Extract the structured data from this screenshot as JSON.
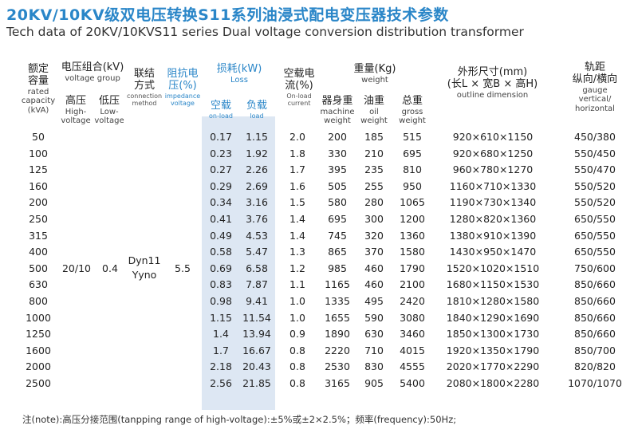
{
  "title_cn": "20KV/10KV级双电压转换S11系列油浸式配电变压器技术参数",
  "title_en": "Tech data of 20KV/10KVS11 series Dual voltage conversion distribution transformer",
  "headers": {
    "capacity": {
      "cn": "额定\n容量",
      "en": "rated\ncapacity\n(kVA)"
    },
    "voltage_group": {
      "cn": "电压组合(kV)",
      "en": "voltage group"
    },
    "high_voltage": {
      "cn": "高压",
      "en": "High-\nvoltage"
    },
    "low_voltage": {
      "cn": "低压",
      "en": "Low-\nvoltage"
    },
    "connection": {
      "cn": "联结\n方式",
      "en": "connection\nmethod"
    },
    "impedance": {
      "cn": "阻抗电\n压(%)",
      "en": "impedance\nvoltage"
    },
    "loss": {
      "cn": "损耗(kW)",
      "en": "Loss"
    },
    "on_load": {
      "cn": "空载",
      "en": "on-load"
    },
    "load": {
      "cn": "负载",
      "en": "load"
    },
    "noload_current": {
      "cn": "空载电\n流(%)",
      "en": "On-load\ncurrent"
    },
    "weight": {
      "cn": "重量(Kg)",
      "en": "weight"
    },
    "machine_weight": {
      "cn": "器身重",
      "en": "machine\nweight"
    },
    "oil_weight": {
      "cn": "油重",
      "en": "oil\nweight"
    },
    "gross_weight": {
      "cn": "总重",
      "en": "gross\nweight"
    },
    "dimension": {
      "cn": "外形尺寸(mm)\n(长L × 宽B × 高H)",
      "en": "outline dimension"
    },
    "gauge": {
      "cn": "轨距\n纵向/横向",
      "en": "gauge\nvertical/\nhorizontal"
    }
  },
  "merged": {
    "voltage": "20/10",
    "low": "0.4",
    "connection": "Dyn11\nYyno",
    "impedance": "5.5"
  },
  "rows": [
    {
      "capacity": "50",
      "noload": "0.17",
      "load": "1.15",
      "current": "2.0",
      "machine": "200",
      "oil": "185",
      "gross": "515",
      "dim": "920×610×1150",
      "gauge": "450/380"
    },
    {
      "capacity": "100",
      "noload": "0.23",
      "load": "1.92",
      "current": "1.8",
      "machine": "330",
      "oil": "210",
      "gross": "695",
      "dim": "920×680×1250",
      "gauge": "550/450"
    },
    {
      "capacity": "125",
      "noload": "0.27",
      "load": "2.26",
      "current": "1.7",
      "machine": "395",
      "oil": "235",
      "gross": "810",
      "dim": "960×780×1270",
      "gauge": "550/470"
    },
    {
      "capacity": "160",
      "noload": "0.29",
      "load": "2.69",
      "current": "1.6",
      "machine": "505",
      "oil": "255",
      "gross": "950",
      "dim": "1160×710×1330",
      "gauge": "550/520"
    },
    {
      "capacity": "200",
      "noload": "0.34",
      "load": "3.16",
      "current": "1.5",
      "machine": "580",
      "oil": "280",
      "gross": "1065",
      "dim": "1190×730×1340",
      "gauge": "550/520"
    },
    {
      "capacity": "250",
      "noload": "0.41",
      "load": "3.76",
      "current": "1.4",
      "machine": "695",
      "oil": "300",
      "gross": "1200",
      "dim": "1280×820×1360",
      "gauge": "650/550"
    },
    {
      "capacity": "315",
      "noload": "0.49",
      "load": "4.53",
      "current": "1.4",
      "machine": "745",
      "oil": "320",
      "gross": "1360",
      "dim": "1380×910×1390",
      "gauge": "650/550"
    },
    {
      "capacity": "400",
      "noload": "0.58",
      "load": "5.47",
      "current": "1.3",
      "machine": "865",
      "oil": "370",
      "gross": "1580",
      "dim": "1430×950×1470",
      "gauge": "650/550"
    },
    {
      "capacity": "500",
      "noload": "0.69",
      "load": "6.58",
      "current": "1.2",
      "machine": "985",
      "oil": "460",
      "gross": "1790",
      "dim": "1520×1020×1510",
      "gauge": "750/600"
    },
    {
      "capacity": "630",
      "noload": "0.83",
      "load": "7.87",
      "current": "1.1",
      "machine": "1165",
      "oil": "460",
      "gross": "2100",
      "dim": "1680×1150×1530",
      "gauge": "850/660"
    },
    {
      "capacity": "800",
      "noload": "0.98",
      "load": "9.41",
      "current": "1.0",
      "machine": "1335",
      "oil": "495",
      "gross": "2420",
      "dim": "1810×1280×1580",
      "gauge": "850/660"
    },
    {
      "capacity": "1000",
      "noload": "1.15",
      "load": "11.54",
      "current": "1.0",
      "machine": "1655",
      "oil": "590",
      "gross": "3080",
      "dim": "1840×1290×1690",
      "gauge": "850/660"
    },
    {
      "capacity": "1250",
      "noload": "1.4",
      "load": "13.94",
      "current": "0.9",
      "machine": "1890",
      "oil": "630",
      "gross": "3460",
      "dim": "1850×1300×1730",
      "gauge": "850/660"
    },
    {
      "capacity": "1600",
      "noload": "1.7",
      "load": "16.67",
      "current": "0.8",
      "machine": "2220",
      "oil": "710",
      "gross": "4015",
      "dim": "1920×1350×1790",
      "gauge": "850/700"
    },
    {
      "capacity": "2000",
      "noload": "2.18",
      "load": "20.43",
      "current": "0.8",
      "machine": "2530",
      "oil": "830",
      "gross": "4555",
      "dim": "2020×1770×2290",
      "gauge": "820/820"
    },
    {
      "capacity": "2500",
      "noload": "2.56",
      "load": "21.85",
      "current": "0.8",
      "machine": "3165",
      "oil": "905",
      "gross": "5400",
      "dim": "2080×1800×2280",
      "gauge": "1070/1070"
    }
  ],
  "note": "注(note):高压分接范围(tanpping range of high-voltage):±5%或±2×2.5%；频率(frequency):50Hz;"
}
